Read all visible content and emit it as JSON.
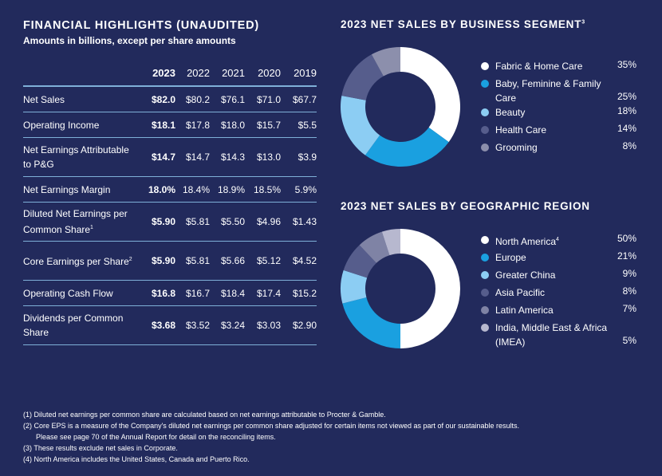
{
  "financial": {
    "title": "FINANCIAL HIGHLIGHTS (UNAUDITED)",
    "subtitle": "Amounts in billions, except per share amounts",
    "years": [
      "2023",
      "2022",
      "2021",
      "2020",
      "2019"
    ],
    "rows": [
      {
        "label": "Net Sales",
        "values": [
          "$82.0",
          "$80.2",
          "$76.1",
          "$71.0",
          "$67.7"
        ]
      },
      {
        "label": "Operating Income",
        "values": [
          "$18.1",
          "$17.8",
          "$18.0",
          "$15.7",
          "$5.5"
        ]
      },
      {
        "label": "Net Earnings Attributable to P&G",
        "values": [
          "$14.7",
          "$14.7",
          "$14.3",
          "$13.0",
          "$3.9"
        ]
      },
      {
        "label": "Net Earnings Margin",
        "values": [
          "18.0%",
          "18.4%",
          "18.9%",
          "18.5%",
          "5.9%"
        ]
      },
      {
        "label": "Diluted Net Earnings per Common Share",
        "sup": "1",
        "values": [
          "$5.90",
          "$5.81",
          "$5.50",
          "$4.96",
          "$1.43"
        ]
      },
      {
        "label": "Core Earnings per Share",
        "sup": "2",
        "values": [
          "$5.90",
          "$5.81",
          "$5.66",
          "$5.12",
          "$4.52"
        ]
      },
      {
        "label": "Operating Cash Flow",
        "values": [
          "$16.8",
          "$16.7",
          "$18.4",
          "$17.4",
          "$15.2"
        ]
      },
      {
        "label": "Dividends per Common Share",
        "values": [
          "$3.68",
          "$3.52",
          "$3.24",
          "$3.03",
          "$2.90"
        ]
      }
    ]
  },
  "chart_data": [
    {
      "type": "pie",
      "title": "2023 NET SALES BY BUSINESS SEGMENT",
      "title_sup": "3",
      "categories": [
        "Fabric & Home Care",
        "Baby, Feminine & Family Care",
        "Beauty",
        "Health Care",
        "Grooming"
      ],
      "values": [
        35,
        25,
        18,
        14,
        8
      ],
      "value_labels": [
        "35%",
        "25%",
        "18%",
        "14%",
        "8%"
      ],
      "colors": [
        "#ffffff",
        "#1aa0e0",
        "#8ccdf3",
        "#565d8c",
        "#8c8fac"
      ]
    },
    {
      "type": "pie",
      "title": "2023 NET SALES BY GEOGRAPHIC REGION",
      "categories": [
        "North America",
        "Europe",
        "Greater China",
        "Asia Pacific",
        "Latin America",
        "India, Middle East & Africa (IMEA)"
      ],
      "category_sups": [
        "4",
        "",
        "",
        "",
        "",
        ""
      ],
      "values": [
        50,
        21,
        9,
        8,
        7,
        5
      ],
      "value_labels": [
        "50%",
        "21%",
        "9%",
        "8%",
        "7%",
        "5%"
      ],
      "colors": [
        "#ffffff",
        "#1aa0e0",
        "#8ccdf3",
        "#565d8c",
        "#7f83a5",
        "#b7b8cf"
      ]
    }
  ],
  "footnotes": [
    "(1)  Diluted net earnings per common share are calculated based on net earnings attributable to Procter & Gamble.",
    "(2)  Core EPS is a measure of the Company's diluted net earnings per common share adjusted for certain items not viewed as part of our sustainable results.",
    "Please see page 70 of the Annual Report for detail on the reconciling items.",
    "(3)  These results exclude net sales in Corporate.",
    "(4)  North America includes the United States, Canada and Puerto Rico."
  ]
}
